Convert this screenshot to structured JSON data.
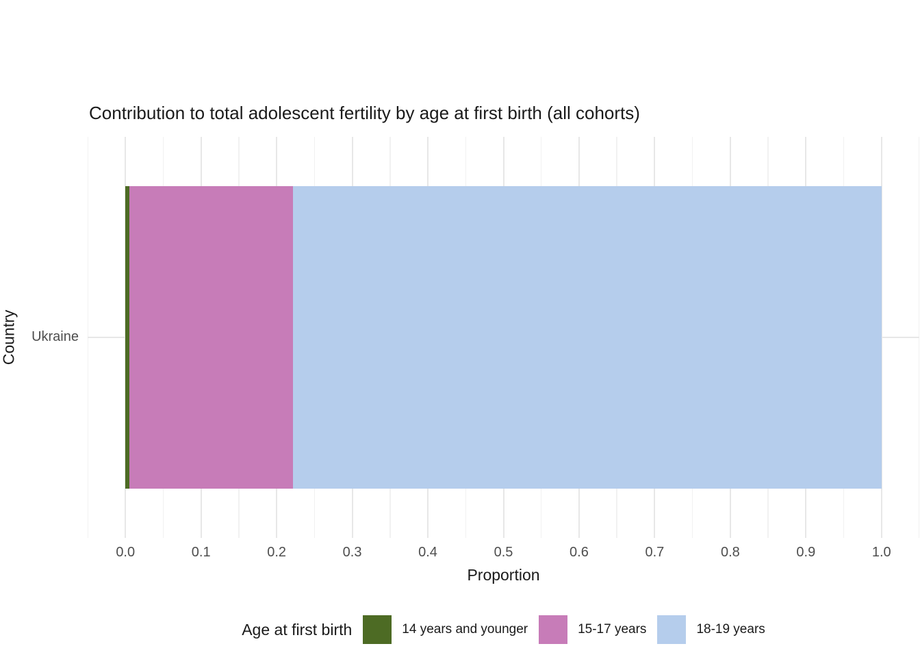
{
  "chart_data": {
    "type": "bar",
    "orientation": "horizontal",
    "stacked": true,
    "title": "Contribution to total adolescent fertility by age at first birth (all cohorts)",
    "xlabel": "Proportion",
    "ylabel": "Country",
    "categories": [
      "Ukraine"
    ],
    "series": [
      {
        "name": "14 years and younger",
        "value": 0.005,
        "color": "#4d6b24"
      },
      {
        "name": "15-17 years",
        "value": 0.217,
        "color": "#c77cb8"
      },
      {
        "name": "18-19 years",
        "value": 0.778,
        "color": "#b5cdec"
      }
    ],
    "xlim": [
      -0.05,
      1.05
    ],
    "x_ticks": [
      0.0,
      0.1,
      0.2,
      0.3,
      0.4,
      0.5,
      0.6,
      0.7,
      0.8,
      0.9,
      1.0
    ],
    "x_tick_labels": [
      "0.0",
      "0.1",
      "0.2",
      "0.3",
      "0.4",
      "0.5",
      "0.6",
      "0.7",
      "0.8",
      "0.9",
      "1.0"
    ],
    "x_minor_ticks": [
      -0.05,
      0.05,
      0.15,
      0.25,
      0.35,
      0.45,
      0.55,
      0.65,
      0.75,
      0.85,
      0.95,
      1.05
    ],
    "grid": "vertical major+minor, horizontal major at category",
    "legend_title": "Age at first birth",
    "legend_position": "bottom"
  }
}
